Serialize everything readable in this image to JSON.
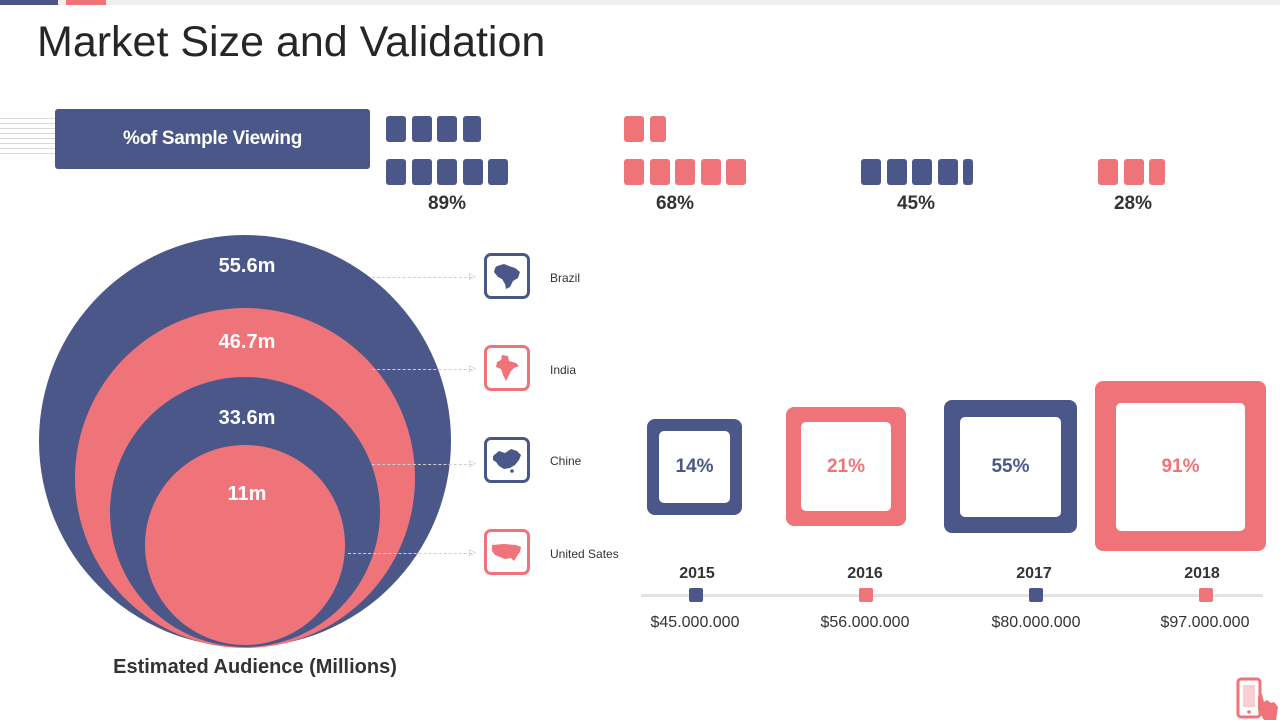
{
  "colors": {
    "navy": "#4a5788",
    "coral": "#ef747a"
  },
  "title": "Market Size and Validation",
  "sample_viewing": {
    "label": "%of Sample Viewing",
    "groups": [
      {
        "percent": "89%",
        "value": 89,
        "color": "navy"
      },
      {
        "percent": "68%",
        "value": 68,
        "color": "coral"
      },
      {
        "percent": "45%",
        "value": 45,
        "color": "navy"
      },
      {
        "percent": "28%",
        "value": 28,
        "color": "coral"
      }
    ]
  },
  "audience": {
    "label": "Estimated Audience (Millions)",
    "circles": [
      {
        "value": "55.6m",
        "color": "navy",
        "country": "Brazil",
        "icon": "brazil-map-icon"
      },
      {
        "value": "46.7m",
        "color": "coral",
        "country": "India",
        "icon": "india-map-icon"
      },
      {
        "value": "33.6m",
        "color": "navy",
        "country": "Chine",
        "icon": "china-map-icon"
      },
      {
        "value": "11m",
        "color": "coral",
        "country": "United Sates",
        "icon": "usa-map-icon"
      }
    ]
  },
  "growth": [
    {
      "year": "2015",
      "percent": "14%",
      "amount": "$45.000.000",
      "color": "navy"
    },
    {
      "year": "2016",
      "percent": "21%",
      "amount": "$56.000.000",
      "color": "coral"
    },
    {
      "year": "2017",
      "percent": "55%",
      "amount": "$80.000.000",
      "color": "navy"
    },
    {
      "year": "2018",
      "percent": "91%",
      "amount": "$97.000.000",
      "color": "coral"
    }
  ],
  "corner_icon": "mobile-touch-icon"
}
